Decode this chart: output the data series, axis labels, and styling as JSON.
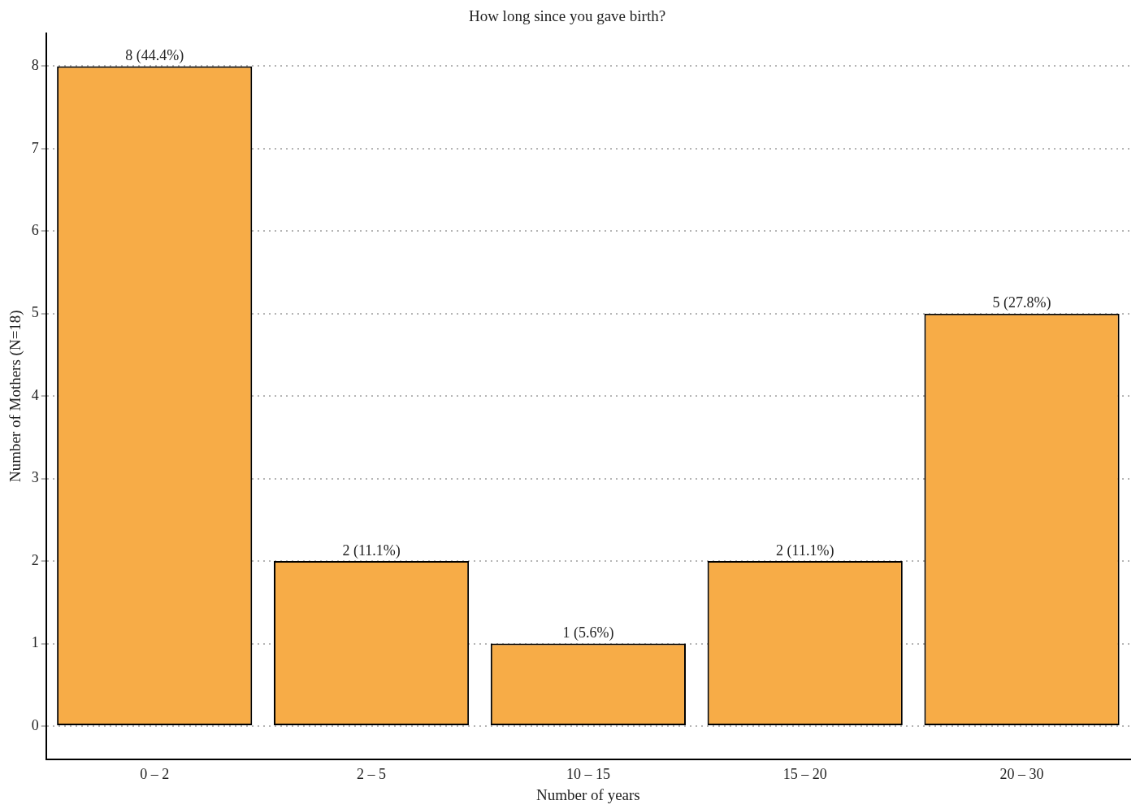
{
  "chart_data": {
    "type": "bar",
    "title": "How long since you gave birth?",
    "xlabel": "Number of years",
    "ylabel": "Number of Mothers (N=18)",
    "categories": [
      "0 – 2",
      "2 – 5",
      "10 – 15",
      "15 – 20",
      "20 – 30"
    ],
    "values": [
      8,
      2,
      1,
      2,
      5
    ],
    "value_labels": [
      "8 (44.4%)",
      "2 (11.1%)",
      "1 (5.6%)",
      "2 (11.1%)",
      "5 (27.8%)"
    ],
    "color": "#f7ac47",
    "ylim": [
      -0.4,
      8.4
    ],
    "yticks": [
      0,
      1,
      2,
      3,
      4,
      5,
      6,
      7,
      8
    ],
    "grid": "y",
    "legend": false
  }
}
